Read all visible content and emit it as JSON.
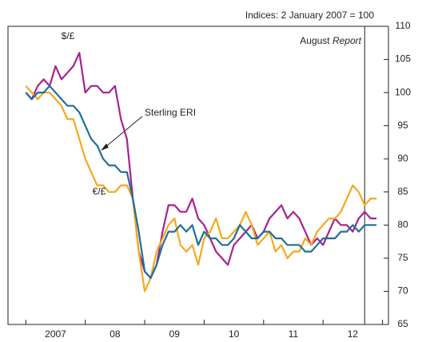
{
  "chart_data": {
    "type": "line",
    "unit_label": "Indices:  2 January 2007 = 100",
    "annotation": {
      "prefix": "August",
      "italic": "Report",
      "x": 2012.7
    },
    "x": [
      2007.0,
      2007.1,
      2007.2,
      2007.3,
      2007.4,
      2007.5,
      2007.6,
      2007.7,
      2007.8,
      2007.9,
      2008.0,
      2008.1,
      2008.2,
      2008.3,
      2008.4,
      2008.5,
      2008.6,
      2008.7,
      2008.8,
      2008.9,
      2009.0,
      2009.1,
      2009.2,
      2009.3,
      2009.4,
      2009.5,
      2009.6,
      2009.7,
      2009.8,
      2009.9,
      2010.0,
      2010.1,
      2010.2,
      2010.3,
      2010.4,
      2010.5,
      2010.6,
      2010.7,
      2010.8,
      2010.9,
      2011.0,
      2011.1,
      2011.2,
      2011.3,
      2011.4,
      2011.5,
      2011.6,
      2011.7,
      2011.8,
      2011.9,
      2012.0,
      2012.1,
      2012.2,
      2012.3,
      2012.4,
      2012.5,
      2012.6,
      2012.7,
      2012.8,
      2012.9
    ],
    "series": [
      {
        "name": "$/£",
        "color": "#a8228e",
        "values": [
          100,
          99,
          101,
          102,
          101,
          104,
          102,
          103,
          104,
          106,
          100,
          101,
          101,
          100,
          100,
          101,
          96,
          93,
          84,
          76,
          73,
          72,
          74,
          79,
          83,
          83,
          82,
          82,
          84,
          81,
          80,
          78,
          76,
          75,
          74,
          77,
          78,
          79,
          80,
          78,
          79,
          81,
          82,
          83,
          81,
          82,
          81,
          79,
          77,
          78,
          77,
          79,
          81,
          80,
          80,
          79,
          81,
          82,
          81,
          81
        ]
      },
      {
        "name": "€/£",
        "color": "#f6a81c",
        "values": [
          101,
          100,
          99,
          100,
          100,
          99,
          98,
          96,
          96,
          93,
          90,
          88,
          86,
          86,
          85,
          85,
          86,
          86,
          84,
          76,
          70,
          72,
          76,
          78,
          80,
          81,
          77,
          76,
          77,
          74,
          78,
          79,
          81,
          78,
          78,
          79,
          80,
          82,
          80,
          77,
          78,
          79,
          76,
          77,
          75,
          76,
          76,
          78,
          77,
          79,
          80,
          81,
          81,
          82,
          84,
          86,
          85,
          83,
          84,
          84
        ]
      },
      {
        "name": "Sterling ERI",
        "color": "#1f6f98",
        "values": [
          100,
          99,
          100,
          100,
          101,
          100,
          99,
          98,
          98,
          97,
          95,
          93,
          92,
          90,
          89,
          89,
          88,
          88,
          84,
          79,
          73,
          72,
          74,
          77,
          79,
          79,
          80,
          79,
          80,
          77,
          79,
          78,
          78,
          77,
          77,
          78,
          80,
          79,
          78,
          78,
          79,
          79,
          78,
          78,
          77,
          77,
          77,
          76,
          76,
          77,
          78,
          78,
          78,
          79,
          79,
          80,
          79,
          80,
          80,
          80
        ]
      }
    ],
    "xlim": [
      2006.7,
      2013.1
    ],
    "xticks": [
      {
        "value": 2007.5,
        "label": "2007"
      },
      {
        "value": 2008.5,
        "label": "08"
      },
      {
        "value": 2009.5,
        "label": "09"
      },
      {
        "value": 2010.5,
        "label": "10"
      },
      {
        "value": 2011.5,
        "label": "11"
      },
      {
        "value": 2012.5,
        "label": "12"
      }
    ],
    "xminorticks": [
      2007,
      2008,
      2009,
      2010,
      2011,
      2012,
      2013
    ],
    "ylim": [
      65,
      110
    ],
    "yticks": [
      65,
      70,
      75,
      80,
      85,
      90,
      95,
      100,
      105,
      110
    ]
  }
}
